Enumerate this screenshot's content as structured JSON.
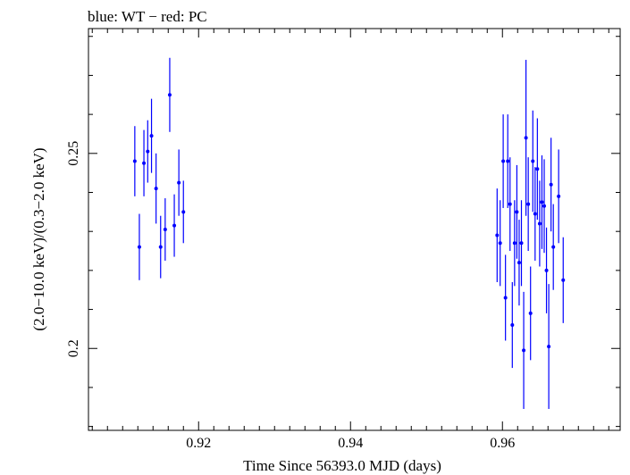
{
  "chart_data": {
    "type": "scatter",
    "title": "blue: WT − red: PC",
    "xlabel": "Time Since 56393.0 MJD (days)",
    "ylabel": "(2.0−10.0 keV)/(0.3−2.0 keV)",
    "xlim": [
      0.9055,
      0.9755
    ],
    "ylim": [
      0.179,
      0.282
    ],
    "xticks": [
      0.92,
      0.94,
      0.96
    ],
    "xtick_labels": [
      "0.92",
      "0.94",
      "0.96"
    ],
    "yticks": [
      0.2,
      0.25
    ],
    "ytick_labels": [
      "0.2",
      "0.25"
    ],
    "grid": false,
    "colors": {
      "series": "#0000ff",
      "axes": "#000000"
    },
    "series": [
      {
        "points": [
          {
            "x": 0.9116,
            "y": 0.248,
            "err": 0.009
          },
          {
            "x": 0.9122,
            "y": 0.226,
            "err": 0.0085
          },
          {
            "x": 0.9128,
            "y": 0.2475,
            "err": 0.0085
          },
          {
            "x": 0.9133,
            "y": 0.2505,
            "err": 0.008
          },
          {
            "x": 0.9138,
            "y": 0.2545,
            "err": 0.0095
          },
          {
            "x": 0.9144,
            "y": 0.241,
            "err": 0.009
          },
          {
            "x": 0.915,
            "y": 0.226,
            "err": 0.008
          },
          {
            "x": 0.9156,
            "y": 0.2305,
            "err": 0.008
          },
          {
            "x": 0.9162,
            "y": 0.265,
            "err": 0.0095
          },
          {
            "x": 0.9168,
            "y": 0.2315,
            "err": 0.008
          },
          {
            "x": 0.9174,
            "y": 0.2425,
            "err": 0.0085
          },
          {
            "x": 0.918,
            "y": 0.235,
            "err": 0.008
          },
          {
            "x": 0.9593,
            "y": 0.229,
            "err": 0.012
          },
          {
            "x": 0.9597,
            "y": 0.227,
            "err": 0.011
          },
          {
            "x": 0.9601,
            "y": 0.248,
            "err": 0.012
          },
          {
            "x": 0.9604,
            "y": 0.213,
            "err": 0.011
          },
          {
            "x": 0.9607,
            "y": 0.248,
            "err": 0.012
          },
          {
            "x": 0.961,
            "y": 0.237,
            "err": 0.012
          },
          {
            "x": 0.9613,
            "y": 0.206,
            "err": 0.011
          },
          {
            "x": 0.9616,
            "y": 0.227,
            "err": 0.011
          },
          {
            "x": 0.9619,
            "y": 0.235,
            "err": 0.012
          },
          {
            "x": 0.9622,
            "y": 0.222,
            "err": 0.011
          },
          {
            "x": 0.9625,
            "y": 0.227,
            "err": 0.011
          },
          {
            "x": 0.9628,
            "y": 0.1995,
            "err": 0.015
          },
          {
            "x": 0.9631,
            "y": 0.254,
            "err": 0.02
          },
          {
            "x": 0.9634,
            "y": 0.237,
            "err": 0.012
          },
          {
            "x": 0.9637,
            "y": 0.209,
            "err": 0.012
          },
          {
            "x": 0.964,
            "y": 0.248,
            "err": 0.013
          },
          {
            "x": 0.9643,
            "y": 0.2345,
            "err": 0.012
          },
          {
            "x": 0.9646,
            "y": 0.246,
            "err": 0.013
          },
          {
            "x": 0.9649,
            "y": 0.232,
            "err": 0.011
          },
          {
            "x": 0.9652,
            "y": 0.2375,
            "err": 0.012
          },
          {
            "x": 0.9655,
            "y": 0.2365,
            "err": 0.012
          },
          {
            "x": 0.9658,
            "y": 0.22,
            "err": 0.011
          },
          {
            "x": 0.9661,
            "y": 0.2005,
            "err": 0.016
          },
          {
            "x": 0.9664,
            "y": 0.242,
            "err": 0.012
          },
          {
            "x": 0.9667,
            "y": 0.226,
            "err": 0.011
          },
          {
            "x": 0.9674,
            "y": 0.239,
            "err": 0.012
          },
          {
            "x": 0.968,
            "y": 0.2175,
            "err": 0.011
          }
        ]
      }
    ]
  }
}
